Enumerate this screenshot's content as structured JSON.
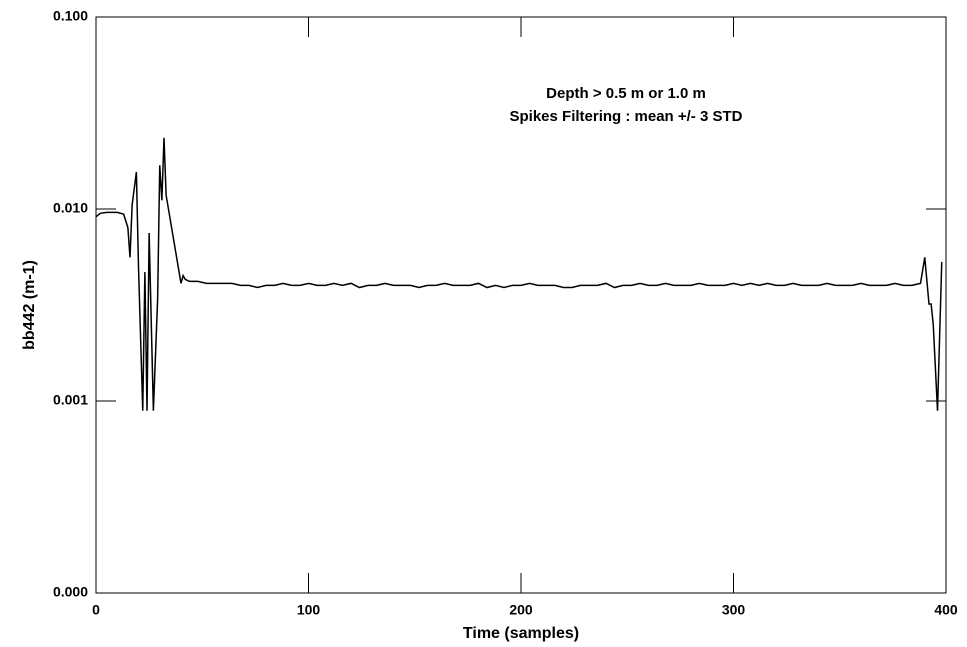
{
  "chart_data": {
    "type": "line",
    "xlabel": "Time (samples)",
    "ylabel": "bb442 (m-1)",
    "annotations": [
      {
        "text": "Depth > 0.5 m or 1.0 m",
        "color": "#ff0000"
      },
      {
        "text": "Spikes Filtering : mean +/- 3 STD",
        "color": "#0000ff"
      }
    ],
    "log_y": true,
    "xlim": [
      0,
      400
    ],
    "xticks": [
      0,
      100,
      200,
      300,
      400
    ],
    "ylim": [
      0.0001,
      0.1
    ],
    "yticks": [
      {
        "value": 0.0001,
        "label": "0.000"
      },
      {
        "value": 0.001,
        "label": "0.001"
      },
      {
        "value": 0.01,
        "label": "0.010"
      },
      {
        "value": 0.1,
        "label": "0.100"
      }
    ],
    "color": "#000000",
    "x": [
      0,
      2,
      5,
      10,
      13,
      15,
      16,
      17,
      19,
      20,
      22,
      23,
      24,
      25,
      27,
      29,
      30,
      31,
      32,
      33,
      40,
      41,
      42,
      44,
      48,
      52,
      56,
      60,
      64,
      68,
      72,
      76,
      80,
      84,
      88,
      92,
      96,
      100,
      104,
      108,
      112,
      116,
      120,
      124,
      128,
      132,
      136,
      140,
      144,
      148,
      152,
      156,
      160,
      164,
      168,
      172,
      176,
      180,
      184,
      188,
      192,
      196,
      200,
      204,
      208,
      212,
      216,
      220,
      224,
      228,
      232,
      236,
      240,
      244,
      248,
      252,
      256,
      260,
      264,
      268,
      272,
      276,
      280,
      284,
      288,
      292,
      296,
      300,
      304,
      308,
      312,
      316,
      320,
      324,
      328,
      332,
      336,
      340,
      344,
      348,
      352,
      356,
      360,
      364,
      368,
      372,
      376,
      380,
      384,
      388,
      390,
      392,
      393,
      394,
      396,
      398
    ],
    "values": [
      0.0091,
      0.0095,
      0.0096,
      0.0096,
      0.0094,
      0.008,
      0.0056,
      0.0105,
      0.0156,
      0.005,
      0.00089,
      0.0047,
      0.00089,
      0.0075,
      0.00089,
      0.0034,
      0.0169,
      0.0111,
      0.0235,
      0.0118,
      0.0041,
      0.0045,
      0.0043,
      0.0042,
      0.0042,
      0.0041,
      0.0041,
      0.0041,
      0.0041,
      0.004,
      0.004,
      0.0039,
      0.004,
      0.004,
      0.0041,
      0.004,
      0.004,
      0.0041,
      0.004,
      0.004,
      0.0041,
      0.004,
      0.0041,
      0.0039,
      0.004,
      0.004,
      0.0041,
      0.004,
      0.004,
      0.004,
      0.0039,
      0.004,
      0.004,
      0.0041,
      0.004,
      0.004,
      0.004,
      0.0041,
      0.0039,
      0.004,
      0.0039,
      0.004,
      0.004,
      0.0041,
      0.004,
      0.004,
      0.004,
      0.0039,
      0.0039,
      0.004,
      0.004,
      0.004,
      0.0041,
      0.0039,
      0.004,
      0.004,
      0.0041,
      0.004,
      0.004,
      0.0041,
      0.004,
      0.004,
      0.004,
      0.0041,
      0.004,
      0.004,
      0.004,
      0.0041,
      0.004,
      0.0041,
      0.004,
      0.0041,
      0.004,
      0.004,
      0.0041,
      0.004,
      0.004,
      0.004,
      0.0041,
      0.004,
      0.004,
      0.004,
      0.0041,
      0.004,
      0.004,
      0.004,
      0.0041,
      0.004,
      0.004,
      0.0041,
      0.0056,
      0.0032,
      0.0032,
      0.0025,
      0.00089,
      0.0053
    ]
  }
}
